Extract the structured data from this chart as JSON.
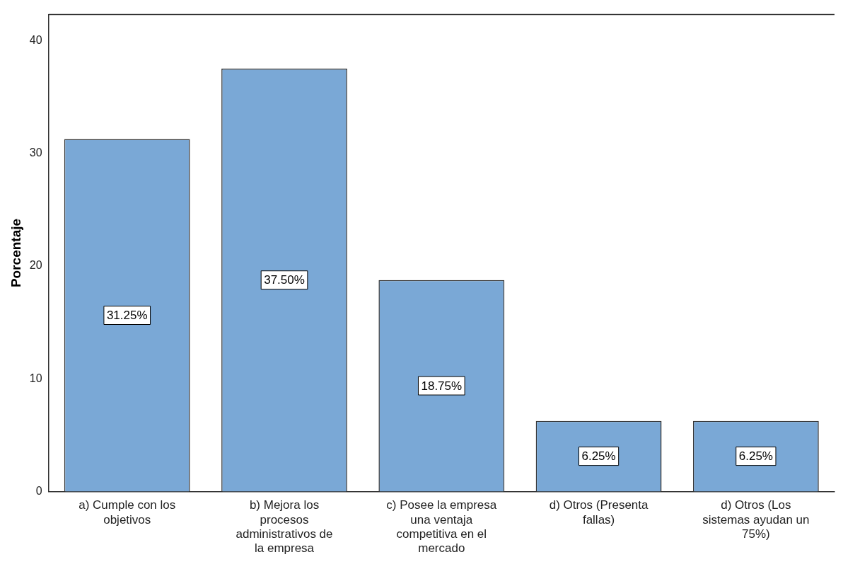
{
  "chart_data": {
    "type": "bar",
    "ylabel": "Porcentaje",
    "categories": [
      "a) Cumple con los objetivos",
      "b) Mejora los procesos administrativos de la empresa",
      "c) Posee la empresa una ventaja competitiva en el mercado",
      "d) Otros (Presenta fallas)",
      "d) Otros (Los sistemas ayudan un 75%)"
    ],
    "values": [
      31.25,
      37.5,
      18.75,
      6.25,
      6.25
    ],
    "value_labels": [
      "31.25%",
      "37.50%",
      "18.75%",
      "6.25%",
      "6.25%"
    ],
    "color": "#7aa8d6",
    "ylim": [
      0,
      42.3
    ],
    "yticks": [
      0,
      10,
      20,
      30,
      40
    ],
    "grid": false,
    "legend": false
  }
}
